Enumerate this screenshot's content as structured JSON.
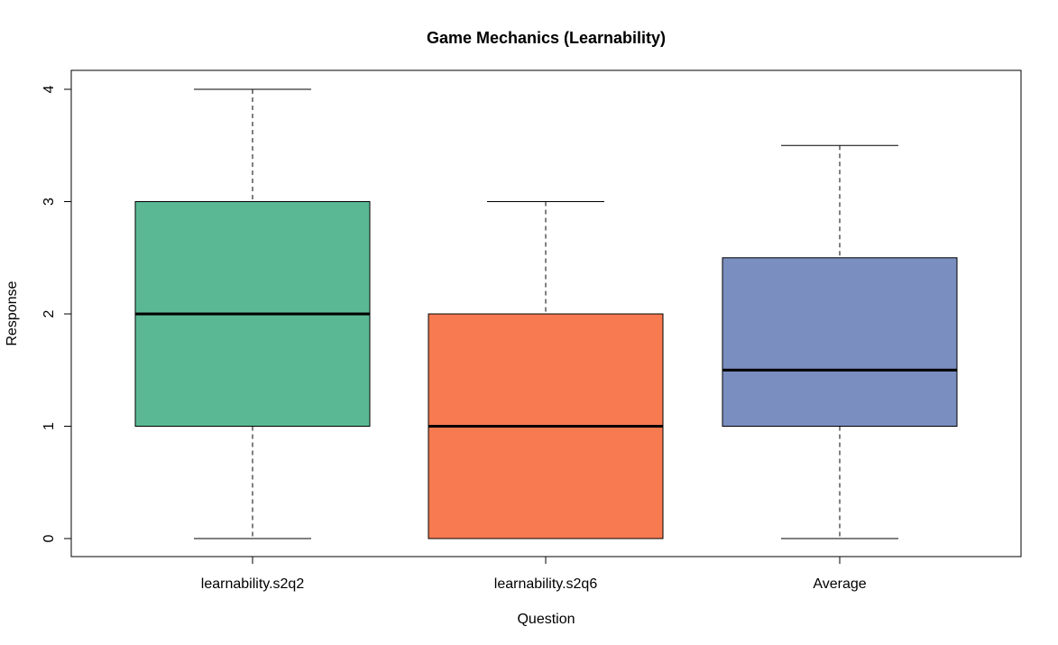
{
  "chart_data": {
    "type": "boxplot",
    "title": "Game Mechanics (Learnability)",
    "xlabel": "Question",
    "ylabel": "Response",
    "ylim": [
      -0.16,
      4.16
    ],
    "yticks": [
      0,
      1,
      2,
      3,
      4
    ],
    "categories": [
      "learnability.s2q2",
      "learnability.s2q6",
      "Average"
    ],
    "boxes": [
      {
        "category": "learnability.s2q2",
        "min": 0,
        "q1": 1,
        "median": 2,
        "q3": 3,
        "max": 4,
        "color": "#5ab994"
      },
      {
        "category": "learnability.s2q6",
        "min": 0,
        "q1": 0,
        "median": 1,
        "q3": 2,
        "max": 3,
        "color": "#f77a51"
      },
      {
        "category": "Average",
        "min": 0,
        "q1": 1,
        "median": 1.5,
        "q3": 2.5,
        "max": 3.5,
        "color": "#7b8ec0"
      }
    ],
    "grid": false,
    "legend": "none"
  }
}
